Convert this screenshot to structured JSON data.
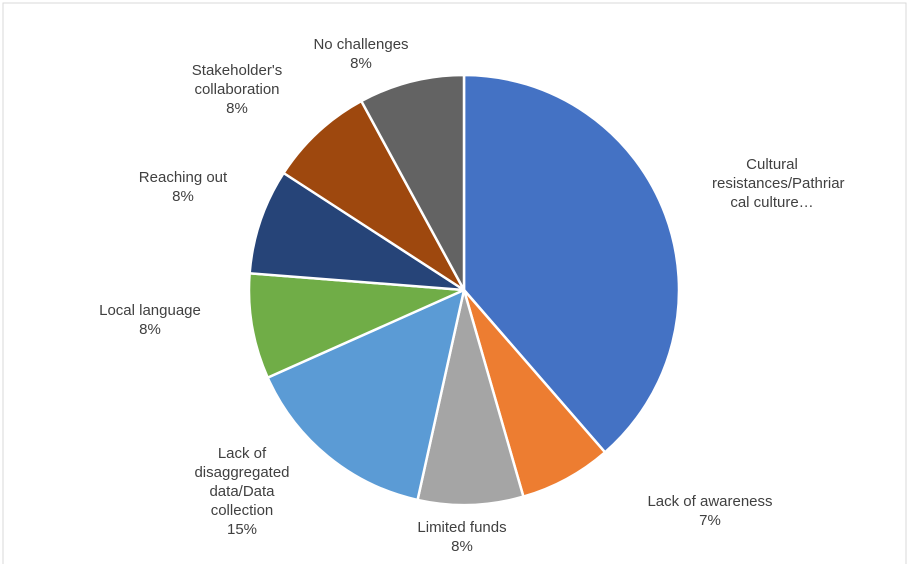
{
  "chart_data": {
    "type": "pie",
    "title": "",
    "slices": [
      {
        "label": "Cultural resistances/Pathriarcal culture…",
        "label_lines": [
          "Cultural",
          "resistances/Pathriar",
          "cal culture…"
        ],
        "value": 39,
        "percent": "",
        "color": "#4472C4"
      },
      {
        "label": "Lack of awareness",
        "label_lines": [
          "Lack of awareness"
        ],
        "value": 7,
        "percent": "7%",
        "color": "#ED7D31"
      },
      {
        "label": "Limited funds",
        "label_lines": [
          "Limited funds"
        ],
        "value": 8,
        "percent": "8%",
        "color": "#A5A5A5"
      },
      {
        "label": "Lack of disaggregated data/Data collection",
        "label_lines": [
          "Lack of",
          "disaggregated",
          "data/Data",
          "collection"
        ],
        "value": 15,
        "percent": "15%",
        "color": "#5B9BD5"
      },
      {
        "label": "Local language",
        "label_lines": [
          "Local language"
        ],
        "value": 8,
        "percent": "8%",
        "color": "#70AD47"
      },
      {
        "label": "Reaching out",
        "label_lines": [
          "Reaching out"
        ],
        "value": 8,
        "percent": "8%",
        "color": "#264478"
      },
      {
        "label": "Stakeholder's collaboration",
        "label_lines": [
          "Stakeholder's",
          "collaboration"
        ],
        "value": 8,
        "percent": "8%",
        "color": "#9E480E"
      },
      {
        "label": "No challenges",
        "label_lines": [
          "No challenges"
        ],
        "value": 8,
        "percent": "8%",
        "color": "#636363"
      }
    ],
    "start_angle_deg": 0,
    "direction": "clockwise",
    "legend": "none",
    "data_labels": "outside"
  }
}
